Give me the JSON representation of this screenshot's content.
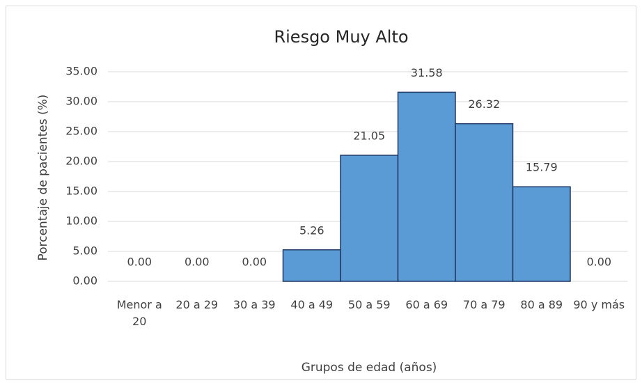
{
  "chart_data": {
    "type": "bar",
    "title": "Riesgo Muy Alto",
    "x_label": "Grupos de edad (años)",
    "y_label": "Porcentaje de pacientes (%)",
    "categories": [
      "Menor a 20",
      "20 a 29",
      "30 a 39",
      "40 a 49",
      "50 a 59",
      "60 a 69",
      "70 a 79",
      "80 a 89",
      "90 y más"
    ],
    "values": [
      0,
      0,
      0,
      5.26,
      21.05,
      31.58,
      26.32,
      15.79,
      0
    ],
    "value_labels": [
      "0.00",
      "0.00",
      "0.00",
      "5.26",
      "21.05",
      "31.58",
      "26.32",
      "15.79",
      "0.00"
    ],
    "color": "#5b9bd5",
    "edge_color": "#1f3864",
    "ylim": [
      0,
      35
    ],
    "yticks": [
      {
        "value": 0,
        "label": "0.00"
      },
      {
        "value": 5,
        "label": "5.00"
      },
      {
        "value": 10,
        "label": "10.00"
      },
      {
        "value": 15,
        "label": "15.00"
      },
      {
        "value": 20,
        "label": "20.00"
      },
      {
        "value": 25,
        "label": "25.00"
      },
      {
        "value": 30,
        "label": "30.00"
      },
      {
        "value": 35,
        "label": "35.00"
      }
    ],
    "grid": true
  }
}
